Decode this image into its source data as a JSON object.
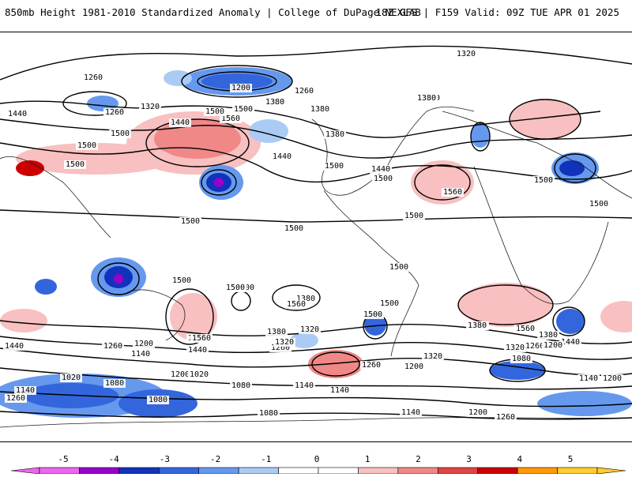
{
  "header": {
    "title_left": "850mb Height 1981-2010 Standardized Anomaly | College of DuPage NEXLAB",
    "title_right": "18Z GFS | F159 Valid: 09Z TUE APR 01 2025"
  },
  "legend": {
    "ticks": [
      "-5",
      "-4",
      "-3",
      "-2",
      "-1",
      "0",
      "1",
      "2",
      "3",
      "4",
      "5"
    ],
    "colors": [
      "#ee66ee",
      "#9900cc",
      "#1133bb",
      "#3366dd",
      "#6699ee",
      "#aaccf4",
      "#ffffff",
      "#ffffff",
      "#f8c0c0",
      "#f08888",
      "#e04444",
      "#cc0000",
      "#ff9900",
      "#ffcc33"
    ]
  },
  "contour_labels": [
    "1320",
    "1260",
    "1200",
    "1260",
    "1260",
    "1320",
    "1380",
    "1500",
    "1560",
    "1320",
    "1380",
    "1440",
    "1440",
    "1500",
    "1500",
    "1500",
    "1380",
    "1500",
    "1380",
    "1440",
    "1500",
    "1380",
    "1440",
    "1500",
    "1560",
    "1500",
    "1500",
    "1500",
    "1500",
    "1500",
    "1500",
    "1500",
    "1500",
    "1380",
    "1560",
    "1500",
    "1500",
    "1500",
    "1560",
    "1440",
    "1380",
    "1320",
    "1200",
    "1140",
    "1440",
    "1380",
    "1260",
    "1560",
    "1440",
    "1380",
    "1320",
    "1260",
    "1440",
    "1320",
    "1380",
    "1200",
    "1260",
    "1140",
    "1200",
    "1320",
    "1260",
    "1080",
    "1140",
    "1200",
    "1260",
    "1140",
    "1020",
    "1020",
    "1080",
    "1080",
    "1080",
    "1140",
    "1080",
    "1200",
    "1260",
    "1140",
    "1200",
    "1260",
    "1440"
  ]
}
